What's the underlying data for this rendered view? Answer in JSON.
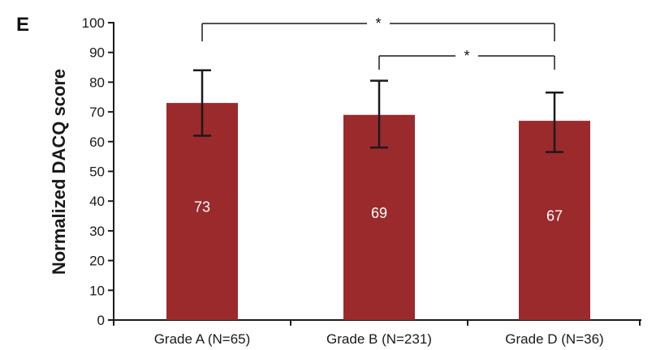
{
  "panel_label": "E",
  "chart_data": {
    "type": "bar",
    "title": "",
    "xlabel": "",
    "ylabel": "Normalized DACQ score",
    "ylim": [
      0,
      100
    ],
    "yticks": [
      0,
      10,
      20,
      30,
      40,
      50,
      60,
      70,
      80,
      90,
      100
    ],
    "categories": [
      "Grade A (N=65)",
      "Grade B (N=231)",
      "Grade D (N=36)"
    ],
    "values": [
      73,
      69,
      67
    ],
    "value_labels": [
      "73",
      "69",
      "67"
    ],
    "error_bars": [
      {
        "low": 62,
        "high": 84
      },
      {
        "low": 58,
        "high": 80.5
      },
      {
        "low": 56.5,
        "high": 76.5
      }
    ],
    "significance": [
      {
        "from": 0,
        "to": 2,
        "label": "*"
      },
      {
        "from": 1,
        "to": 2,
        "label": "*"
      }
    ],
    "grid": false,
    "legend": "none",
    "colors": {
      "bar": "#9b2a2d",
      "axis": "#1a1a1a",
      "value_text": "#ffffff"
    }
  }
}
